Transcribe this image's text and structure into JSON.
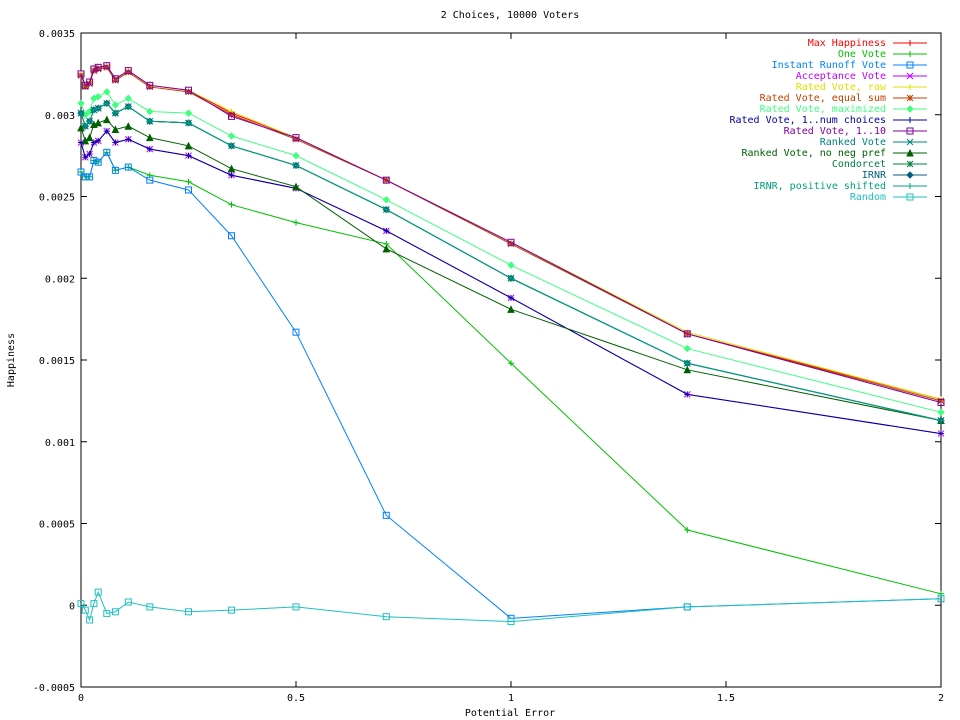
{
  "chart_data": {
    "type": "line",
    "title": "2 Choices, 10000 Voters",
    "xlabel": "Potential Error",
    "ylabel": "Happiness",
    "xlim": [
      0,
      2
    ],
    "ylim": [
      -0.0005,
      0.0035
    ],
    "grid": false,
    "legend_position": "top-right",
    "x_ticks": [
      0,
      0.5,
      1,
      1.5,
      2
    ],
    "x_tick_labels": [
      "0",
      "0.5",
      "1",
      "1.5",
      "2"
    ],
    "y_ticks": [
      -0.0005,
      0,
      0.0005,
      0.001,
      0.0015,
      0.002,
      0.0025,
      0.003,
      0.0035
    ],
    "y_tick_labels": [
      "-0.0005",
      "0",
      "0.0005",
      "0.001",
      "0.0015",
      "0.002",
      "0.0025",
      "0.003",
      "0.0035"
    ],
    "x": [
      0,
      0.01,
      0.02,
      0.03,
      0.04,
      0.06,
      0.08,
      0.11,
      0.16,
      0.25,
      0.35,
      0.5,
      0.71,
      1.0,
      1.41,
      2.0
    ],
    "series": [
      {
        "name": "Max Happiness",
        "color": "#ff0000",
        "marker": "plus",
        "values": [
          0.00325,
          0.00318,
          0.0032,
          0.00328,
          0.00329,
          0.0033,
          0.00322,
          0.00327,
          0.00318,
          0.00315,
          0.00301,
          0.00286,
          0.0026,
          0.00222,
          0.00166,
          0.00126
        ]
      },
      {
        "name": "One Vote",
        "color": "#00c000",
        "marker": "plus",
        "values": [
          0.00265,
          0.00262,
          0.00262,
          0.00272,
          0.00271,
          0.00277,
          0.00266,
          0.00268,
          0.00263,
          0.00259,
          0.00245,
          0.00234,
          0.00221,
          0.00148,
          0.00046,
          7e-05
        ]
      },
      {
        "name": "Instant Runoff Vote",
        "color": "#0080ff",
        "marker": "square",
        "values": [
          0.00265,
          0.00262,
          0.00262,
          0.00272,
          0.00271,
          0.00277,
          0.00266,
          0.00268,
          0.0026,
          0.00254,
          0.00226,
          0.00167,
          0.00055,
          -8e-05,
          -1e-05,
          4e-05
        ]
      },
      {
        "name": "Acceptance Vote",
        "color": "#c000ff",
        "marker": "x",
        "values": [
          0.00283,
          0.00274,
          0.00276,
          0.00283,
          0.00284,
          0.0029,
          0.00283,
          0.00285,
          0.00279,
          0.00275,
          0.00263,
          0.00255,
          0.00229,
          0.00188,
          0.00129,
          0.00105
        ]
      },
      {
        "name": "Rated Vote, raw",
        "color": "#e0e000",
        "marker": "plus",
        "values": [
          0.00325,
          0.00318,
          0.0032,
          0.00328,
          0.00329,
          0.0033,
          0.00322,
          0.00327,
          0.00318,
          0.00315,
          0.00302,
          0.00286,
          0.0026,
          0.00222,
          0.00167,
          0.00126
        ]
      },
      {
        "name": "Rated Vote, equal sum",
        "color": "#c04000",
        "marker": "star",
        "values": [
          0.00324,
          0.00317,
          0.00319,
          0.00327,
          0.00328,
          0.00329,
          0.00321,
          0.00326,
          0.00317,
          0.00314,
          0.003,
          0.00285,
          0.0026,
          0.00221,
          0.00166,
          0.00125
        ]
      },
      {
        "name": "Rated Vote, maximized",
        "color": "#40ff80",
        "marker": "diamond",
        "values": [
          0.00307,
          0.003,
          0.00302,
          0.0031,
          0.00311,
          0.00314,
          0.00306,
          0.0031,
          0.00302,
          0.00301,
          0.00287,
          0.00275,
          0.00248,
          0.00208,
          0.00157,
          0.00118
        ]
      },
      {
        "name": "Rated Vote, 1..num choices",
        "color": "#0000a0",
        "marker": "plus",
        "values": [
          0.00283,
          0.00274,
          0.00276,
          0.00283,
          0.00284,
          0.0029,
          0.00283,
          0.00285,
          0.00279,
          0.00275,
          0.00263,
          0.00255,
          0.00229,
          0.00188,
          0.00129,
          0.00105
        ]
      },
      {
        "name": "Rated Vote, 1..10",
        "color": "#8000a0",
        "marker": "square",
        "values": [
          0.00325,
          0.00318,
          0.0032,
          0.00328,
          0.00329,
          0.0033,
          0.00322,
          0.00327,
          0.00318,
          0.00315,
          0.00299,
          0.00286,
          0.0026,
          0.00222,
          0.00166,
          0.00124
        ]
      },
      {
        "name": "Ranked Vote",
        "color": "#008080",
        "marker": "x",
        "values": [
          0.00301,
          0.00293,
          0.00296,
          0.00303,
          0.00304,
          0.00307,
          0.00301,
          0.00305,
          0.00296,
          0.00295,
          0.00281,
          0.00269,
          0.00242,
          0.002,
          0.00148,
          0.00113
        ]
      },
      {
        "name": "Ranked Vote, no neg pref",
        "color": "#006000",
        "marker": "triangle",
        "values": [
          0.00292,
          0.00284,
          0.00286,
          0.00294,
          0.00295,
          0.00297,
          0.00291,
          0.00293,
          0.00286,
          0.00281,
          0.00267,
          0.00256,
          0.00218,
          0.00181,
          0.00144,
          0.00113
        ]
      },
      {
        "name": "Condorcet",
        "color": "#008040",
        "marker": "star",
        "values": [
          0.00301,
          0.00293,
          0.00296,
          0.00303,
          0.00304,
          0.00307,
          0.00301,
          0.00305,
          0.00296,
          0.00295,
          0.00281,
          0.00269,
          0.00242,
          0.002,
          0.00148,
          0.00113
        ]
      },
      {
        "name": "IRNR",
        "color": "#006080",
        "marker": "diamond",
        "values": [
          0.00301,
          0.00293,
          0.00296,
          0.00303,
          0.00304,
          0.00307,
          0.00301,
          0.00305,
          0.00296,
          0.00295,
          0.00281,
          0.00269,
          0.00242,
          0.002,
          0.00148,
          0.00113
        ]
      },
      {
        "name": "IRNR, positive shifted",
        "color": "#00a080",
        "marker": "plus",
        "values": [
          0.00301,
          0.00293,
          0.00296,
          0.00303,
          0.00304,
          0.00307,
          0.00301,
          0.00305,
          0.00296,
          0.00295,
          0.00281,
          0.00269,
          0.00242,
          0.002,
          0.00148,
          0.00113
        ]
      },
      {
        "name": "Random",
        "color": "#20c0c0",
        "marker": "square",
        "values": [
          1e-05,
          -3e-05,
          -9e-05,
          1e-05,
          8e-05,
          -5e-05,
          -4e-05,
          2e-05,
          -1e-05,
          -4e-05,
          -3e-05,
          -1e-05,
          -7e-05,
          -0.0001,
          -1e-05,
          4e-05
        ]
      }
    ]
  }
}
